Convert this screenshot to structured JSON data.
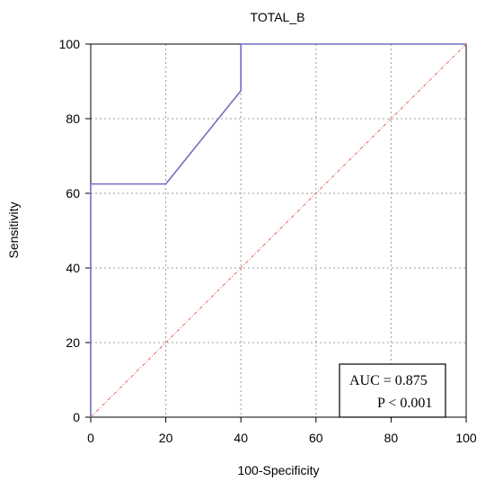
{
  "chart_data": {
    "type": "line",
    "title": "TOTAL_B",
    "xlabel": "100-Specificity",
    "ylabel": "Sensitivity",
    "xlim": [
      0,
      100
    ],
    "ylim": [
      0,
      100
    ],
    "x_ticks": [
      0,
      20,
      40,
      60,
      80,
      100
    ],
    "y_ticks": [
      0,
      20,
      40,
      60,
      80,
      100
    ],
    "grid": true,
    "series": [
      {
        "style": "solid",
        "color": "#6f6fc0",
        "x": [
          0,
          0,
          20,
          40,
          40,
          100
        ],
        "y": [
          0,
          62.5,
          62.5,
          87.5,
          100,
          100
        ]
      },
      {
        "style": "dash-dot",
        "color": "#e06a5a",
        "x": [
          0,
          100
        ],
        "y": [
          0,
          100
        ]
      }
    ],
    "annotations": {
      "auc": "AUC = 0.875",
      "p": "P < 0.001",
      "placement": "bottom-right"
    }
  }
}
